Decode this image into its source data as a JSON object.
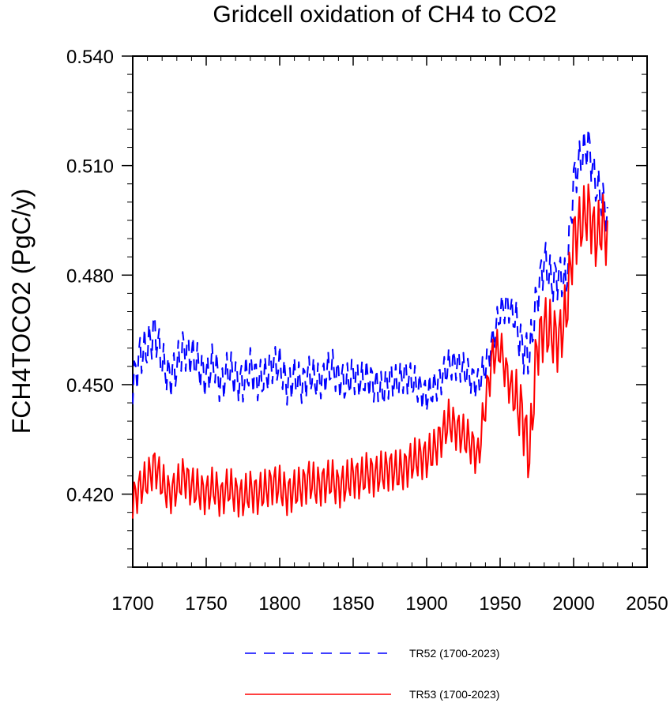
{
  "chart_data": {
    "type": "line",
    "title": "Gridcell oxidation of CH4 to CO2",
    "xlabel": "",
    "ylabel": "FCH4TOCO2  (PgC/y)",
    "xlim": [
      1700,
      2050
    ],
    "ylim": [
      0.4,
      0.54
    ],
    "xticks": [
      1700,
      1750,
      1800,
      1850,
      1900,
      1950,
      2000,
      2050
    ],
    "xtick_labels": [
      "1700",
      "1750",
      "1800",
      "1850",
      "1900",
      "1950",
      "2000",
      "2050"
    ],
    "yticks": [
      0.42,
      0.45,
      0.48,
      0.51,
      0.54
    ],
    "ytick_labels": [
      "0.420",
      "0.450",
      "0.480",
      "0.510",
      "0.540"
    ],
    "legend_position": "bottom",
    "series": [
      {
        "name": "TR52 (1700-2023)",
        "color": "#0000ff",
        "dash": "dashed",
        "x": [
          1700,
          1705,
          1710,
          1715,
          1720,
          1725,
          1730,
          1735,
          1740,
          1745,
          1750,
          1755,
          1760,
          1765,
          1770,
          1775,
          1780,
          1785,
          1790,
          1795,
          1800,
          1805,
          1810,
          1815,
          1820,
          1825,
          1830,
          1835,
          1840,
          1845,
          1850,
          1855,
          1860,
          1865,
          1870,
          1875,
          1880,
          1885,
          1890,
          1895,
          1900,
          1905,
          1910,
          1915,
          1920,
          1925,
          1930,
          1935,
          1940,
          1945,
          1950,
          1955,
          1960,
          1965,
          1970,
          1975,
          1980,
          1985,
          1990,
          1995,
          2000,
          2005,
          2010,
          2015,
          2020,
          2023
        ],
        "values": [
          0.45,
          0.458,
          0.46,
          0.465,
          0.456,
          0.452,
          0.455,
          0.46,
          0.458,
          0.455,
          0.452,
          0.456,
          0.45,
          0.454,
          0.452,
          0.45,
          0.455,
          0.451,
          0.452,
          0.456,
          0.455,
          0.45,
          0.452,
          0.45,
          0.453,
          0.451,
          0.452,
          0.455,
          0.452,
          0.45,
          0.453,
          0.451,
          0.452,
          0.45,
          0.448,
          0.452,
          0.45,
          0.453,
          0.451,
          0.449,
          0.447,
          0.449,
          0.452,
          0.455,
          0.456,
          0.454,
          0.452,
          0.45,
          0.455,
          0.462,
          0.47,
          0.472,
          0.468,
          0.46,
          0.458,
          0.474,
          0.484,
          0.478,
          0.48,
          0.478,
          0.506,
          0.512,
          0.516,
          0.505,
          0.5,
          0.496
        ]
      },
      {
        "name": "TR53 (1700-2023)",
        "color": "#ff0000",
        "dash": "solid",
        "x": [
          1700,
          1705,
          1710,
          1715,
          1720,
          1725,
          1730,
          1735,
          1740,
          1745,
          1750,
          1755,
          1760,
          1765,
          1770,
          1775,
          1780,
          1785,
          1790,
          1795,
          1800,
          1805,
          1810,
          1815,
          1820,
          1825,
          1830,
          1835,
          1840,
          1845,
          1850,
          1855,
          1860,
          1865,
          1870,
          1875,
          1880,
          1885,
          1890,
          1895,
          1900,
          1905,
          1910,
          1915,
          1920,
          1925,
          1930,
          1935,
          1940,
          1945,
          1950,
          1955,
          1960,
          1965,
          1970,
          1975,
          1980,
          1985,
          1990,
          1995,
          2000,
          2005,
          2010,
          2015,
          2020,
          2023
        ],
        "values": [
          0.418,
          0.422,
          0.424,
          0.428,
          0.423,
          0.42,
          0.422,
          0.425,
          0.422,
          0.421,
          0.42,
          0.422,
          0.419,
          0.422,
          0.42,
          0.419,
          0.421,
          0.42,
          0.421,
          0.423,
          0.422,
          0.42,
          0.421,
          0.422,
          0.424,
          0.422,
          0.423,
          0.424,
          0.422,
          0.423,
          0.425,
          0.424,
          0.426,
          0.425,
          0.426,
          0.427,
          0.426,
          0.427,
          0.429,
          0.43,
          0.43,
          0.432,
          0.436,
          0.44,
          0.438,
          0.436,
          0.434,
          0.43,
          0.445,
          0.458,
          0.46,
          0.452,
          0.446,
          0.442,
          0.43,
          0.46,
          0.466,
          0.464,
          0.462,
          0.47,
          0.49,
          0.494,
          0.498,
          0.49,
          0.494,
          0.49
        ]
      }
    ]
  }
}
